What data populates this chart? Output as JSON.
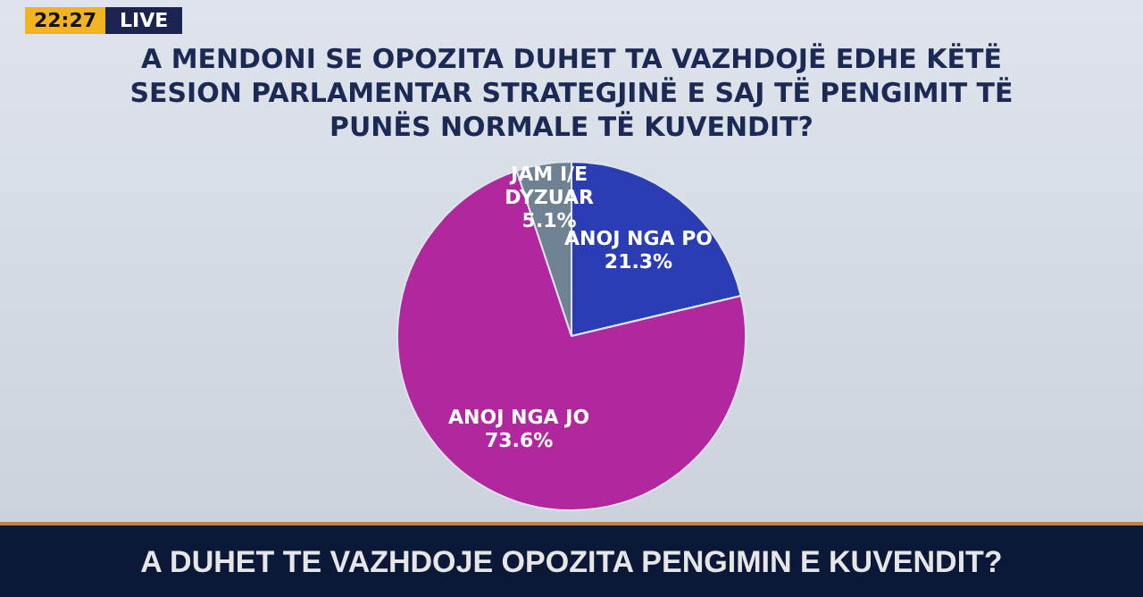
{
  "chart_data": {
    "type": "pie",
    "title": "A MENDONI SE OPOZITA DUHET TA VAZHDOJË EDHE KËTË SESION PARLAMENTAR STRATEGJINË E SAJ TË PENGIMIT TË PUNËS NORMALE TË KUVENDIT?",
    "categories": [
      "ANOJ NGA PO",
      "ANOJ NGA JO",
      "JAM I/E DYZUAR"
    ],
    "values": [
      21.3,
      73.6,
      5.1
    ],
    "value_labels": [
      "21.3%",
      "73.6%",
      "5.1%"
    ],
    "colors": [
      "#2a3db5",
      "#b0279e",
      "#6f8294"
    ],
    "annotations": [
      "22:27",
      "LIVE",
      "A DUHET TE VAZHDOJE OPOZITA PENGIMIN E KUVENDIT?"
    ]
  }
}
